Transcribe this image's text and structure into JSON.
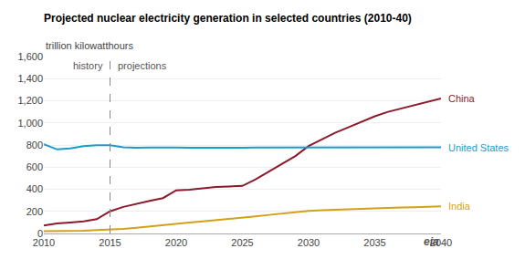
{
  "chart_data": {
    "type": "line",
    "title": "Projected nuclear electricity generation in selected countries (2010-40)",
    "subtitle": "trillion kilowatthours",
    "x": [
      2010,
      2011,
      2012,
      2013,
      2014,
      2015,
      2016,
      2017,
      2018,
      2019,
      2020,
      2021,
      2022,
      2023,
      2024,
      2025,
      2026,
      2027,
      2028,
      2029,
      2030,
      2031,
      2032,
      2033,
      2034,
      2035,
      2036,
      2037,
      2038,
      2039,
      2040
    ],
    "series": [
      {
        "name": "China",
        "color": "#8B1A2A",
        "values": [
          73,
          90,
          100,
          110,
          130,
          200,
          240,
          270,
          295,
          320,
          390,
          395,
          410,
          420,
          425,
          430,
          490,
          560,
          630,
          700,
          790,
          850,
          910,
          960,
          1010,
          1060,
          1100,
          1130,
          1160,
          1190,
          1220
        ]
      },
      {
        "name": "United States",
        "color": "#1B9BC9",
        "values": [
          807,
          760,
          769,
          789,
          798,
          797,
          780,
          775,
          778,
          775,
          777,
          776,
          775,
          776,
          776,
          776,
          778,
          778,
          778,
          778,
          778,
          779,
          779,
          779,
          779,
          779,
          779,
          779,
          779,
          779,
          779
        ]
      },
      {
        "name": "India",
        "color": "#D4A017",
        "values": [
          20,
          20,
          23,
          25,
          30,
          35,
          42,
          52,
          65,
          78,
          90,
          100,
          110,
          120,
          130,
          140,
          155,
          168,
          180,
          192,
          205,
          210,
          215,
          220,
          225,
          228,
          232,
          235,
          238,
          240,
          245
        ]
      }
    ],
    "xlim": [
      2010,
      2040
    ],
    "xticks": [
      2010,
      2015,
      2020,
      2025,
      2030,
      2035,
      2040
    ],
    "ylim": [
      0,
      1600
    ],
    "yticks": [
      0,
      200,
      400,
      600,
      800,
      {
        "value": 1000,
        "label": "1,000"
      },
      {
        "value": 1200,
        "label": "1,200"
      },
      {
        "value": 1400,
        "label": "1,400"
      },
      {
        "value": 1600,
        "label": "1,600"
      }
    ],
    "grid": true,
    "legend": false,
    "reference_lines": [
      {
        "x": 2015,
        "line_style": "dashed",
        "label_left": "history",
        "label_right": "projections"
      }
    ],
    "annotations": [
      {
        "text": "eia"
      }
    ]
  }
}
